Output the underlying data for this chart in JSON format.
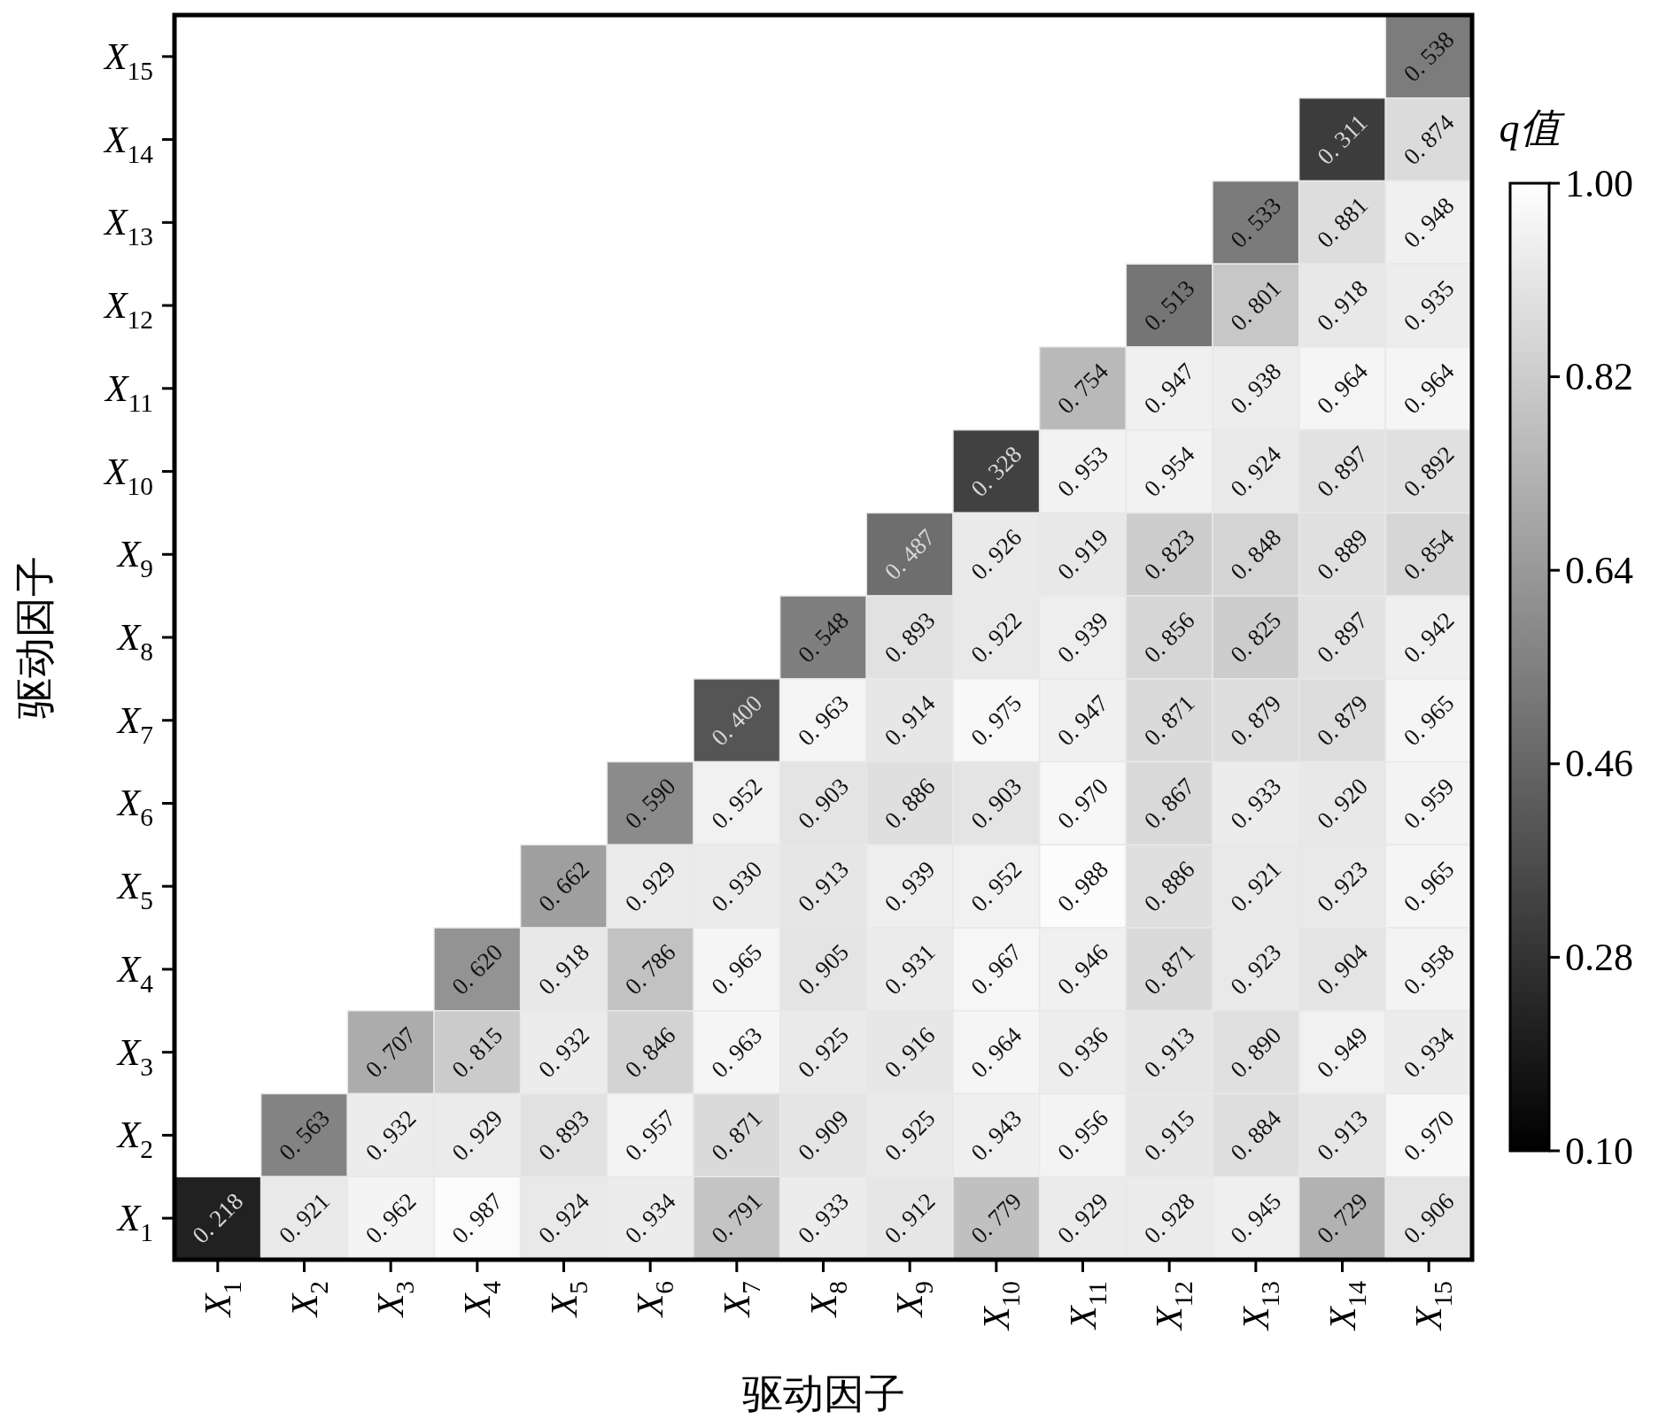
{
  "chart_data": {
    "type": "heatmap",
    "xlabel": "驱动因子",
    "ylabel": "驱动因子",
    "clabel": "q值",
    "categories": [
      "X$_{1}$",
      "X$_{2}$",
      "X$_{3}$",
      "X$_{4}$",
      "X$_{5}$",
      "X$_{6}$",
      "X$_{7}$",
      "X$_{8}$",
      "X$_{9}$",
      "X$_{10}$",
      "X$_{11}$",
      "X$_{12}$",
      "X$_{13}$",
      "X$_{14}$",
      "X$_{15}$"
    ],
    "y_categories": [
      "X$_{15}$",
      "X$_{14}$",
      "X$_{13}$",
      "X$_{12}$",
      "X$_{11}$",
      "X$_{10}$",
      "X$_{9}$",
      "X$_{8}$",
      "X$_{7}$",
      "X$_{6}$",
      "X$_{5}$",
      "X$_{4}$",
      "X$_{3}$",
      "X$_{2}$",
      "X$_{1}$"
    ],
    "cells": [
      [
        null,
        null,
        null,
        null,
        null,
        null,
        null,
        null,
        null,
        null,
        null,
        null,
        null,
        null,
        0.538
      ],
      [
        null,
        null,
        null,
        null,
        null,
        null,
        null,
        null,
        null,
        null,
        null,
        null,
        null,
        0.311,
        0.874
      ],
      [
        null,
        null,
        null,
        null,
        null,
        null,
        null,
        null,
        null,
        null,
        null,
        null,
        0.533,
        0.881,
        0.948
      ],
      [
        null,
        null,
        null,
        null,
        null,
        null,
        null,
        null,
        null,
        null,
        null,
        0.513,
        0.801,
        0.918,
        0.935
      ],
      [
        null,
        null,
        null,
        null,
        null,
        null,
        null,
        null,
        null,
        null,
        0.754,
        0.947,
        0.938,
        0.964,
        0.964
      ],
      [
        null,
        null,
        null,
        null,
        null,
        null,
        null,
        null,
        null,
        0.328,
        0.953,
        0.954,
        0.924,
        0.897,
        0.892
      ],
      [
        null,
        null,
        null,
        null,
        null,
        null,
        null,
        null,
        0.487,
        0.926,
        0.919,
        0.823,
        0.848,
        0.889,
        0.854
      ],
      [
        null,
        null,
        null,
        null,
        null,
        null,
        null,
        0.548,
        0.893,
        0.922,
        0.939,
        0.856,
        0.825,
        0.897,
        0.942
      ],
      [
        null,
        null,
        null,
        null,
        null,
        null,
        0.4,
        0.963,
        0.914,
        0.975,
        0.947,
        0.871,
        0.879,
        0.879,
        0.965
      ],
      [
        null,
        null,
        null,
        null,
        null,
        0.59,
        0.952,
        0.903,
        0.886,
        0.903,
        0.97,
        0.867,
        0.933,
        0.92,
        0.959
      ],
      [
        null,
        null,
        null,
        null,
        0.662,
        0.929,
        0.93,
        0.913,
        0.939,
        0.952,
        0.988,
        0.886,
        0.921,
        0.923,
        0.965
      ],
      [
        null,
        null,
        null,
        0.62,
        0.918,
        0.786,
        0.965,
        0.905,
        0.931,
        0.967,
        0.946,
        0.871,
        0.923,
        0.904,
        0.958
      ],
      [
        null,
        null,
        0.707,
        0.815,
        0.932,
        0.846,
        0.963,
        0.925,
        0.916,
        0.964,
        0.936,
        0.913,
        0.89,
        0.949,
        0.934
      ],
      [
        null,
        0.563,
        0.932,
        0.929,
        0.893,
        0.957,
        0.871,
        0.909,
        0.925,
        0.943,
        0.956,
        0.915,
        0.884,
        0.913,
        0.97
      ],
      [
        0.218,
        0.921,
        0.962,
        0.987,
        0.924,
        0.934,
        0.791,
        0.933,
        0.912,
        0.779,
        0.929,
        0.928,
        0.945,
        0.729,
        0.906
      ]
    ],
    "cell_labels": [
      [
        null,
        null,
        null,
        null,
        null,
        null,
        null,
        null,
        null,
        null,
        null,
        null,
        null,
        null,
        "0. 538"
      ],
      [
        null,
        null,
        null,
        null,
        null,
        null,
        null,
        null,
        null,
        null,
        null,
        null,
        null,
        "0. 311",
        "0. 874"
      ],
      [
        null,
        null,
        null,
        null,
        null,
        null,
        null,
        null,
        null,
        null,
        null,
        null,
        "0. 533",
        "0. 881",
        "0. 948"
      ],
      [
        null,
        null,
        null,
        null,
        null,
        null,
        null,
        null,
        null,
        null,
        null,
        "0. 513",
        "0. 801",
        "0. 918",
        "0. 935"
      ],
      [
        null,
        null,
        null,
        null,
        null,
        null,
        null,
        null,
        null,
        null,
        "0. 754",
        "0. 947",
        "0. 938",
        "0. 964",
        "0. 964"
      ],
      [
        null,
        null,
        null,
        null,
        null,
        null,
        null,
        null,
        null,
        "0. 328",
        "0. 953",
        "0. 954",
        "0. 924",
        "0. 897",
        "0. 892"
      ],
      [
        null,
        null,
        null,
        null,
        null,
        null,
        null,
        null,
        "0. 487",
        "0. 926",
        "0. 919",
        "0. 823",
        "0. 848",
        "0. 889",
        "0. 854"
      ],
      [
        null,
        null,
        null,
        null,
        null,
        null,
        null,
        "0. 548",
        "0. 893",
        "0. 922",
        "0. 939",
        "0. 856",
        "0. 825",
        "0. 897",
        "0. 942"
      ],
      [
        null,
        null,
        null,
        null,
        null,
        null,
        "0. 400",
        "0. 963",
        "0. 914",
        "0. 975",
        "0. 947",
        "0. 871",
        "0. 879",
        "0. 879",
        "0. 965"
      ],
      [
        null,
        null,
        null,
        null,
        null,
        "0. 590",
        "0. 952",
        "0. 903",
        "0. 886",
        "0. 903",
        "0. 970",
        "0. 867",
        "0. 933",
        "0. 920",
        "0. 959"
      ],
      [
        null,
        null,
        null,
        null,
        "0. 662",
        "0. 929",
        "0. 930",
        "0. 913",
        "0. 939",
        "0. 952",
        "0. 988",
        "0. 886",
        "0. 921",
        "0. 923",
        "0. 965"
      ],
      [
        null,
        null,
        null,
        "0. 620",
        "0. 918",
        "0. 786",
        "0. 965",
        "0. 905",
        "0. 931",
        "0. 967",
        "0. 946",
        "0. 871",
        "0. 923",
        "0. 904",
        "0. 958"
      ],
      [
        null,
        null,
        "0. 707",
        "0. 815",
        "0. 932",
        "0. 846",
        "0. 963",
        "0. 925",
        "0. 916",
        "0. 964",
        "0. 936",
        "0. 913",
        "0. 890",
        "0. 949",
        "0. 934"
      ],
      [
        null,
        "0. 563",
        "0. 932",
        "0. 929",
        "0. 893",
        "0. 957",
        "0. 871",
        "0. 909",
        "0. 925",
        "0. 943",
        "0. 956",
        "0. 915",
        "0. 884",
        "0. 913",
        "0. 970"
      ],
      [
        "0. 218",
        "0. 921",
        "0. 962",
        "0. 987",
        "0. 924",
        "0. 934",
        "0. 791",
        "0. 933",
        "0. 912",
        "0. 779",
        "0. 929",
        "0. 928",
        "0. 945",
        "0. 729",
        "0. 906"
      ]
    ],
    "clim": [
      0.1,
      1.0
    ],
    "cticks": [
      {
        "value": 0.1,
        "label": "0.10"
      },
      {
        "value": 0.28,
        "label": "0.28"
      },
      {
        "value": 0.46,
        "label": "0.46"
      },
      {
        "value": 0.64,
        "label": "0.64"
      },
      {
        "value": 0.82,
        "label": "0.82"
      },
      {
        "value": 1.0,
        "label": "1.00"
      }
    ]
  }
}
